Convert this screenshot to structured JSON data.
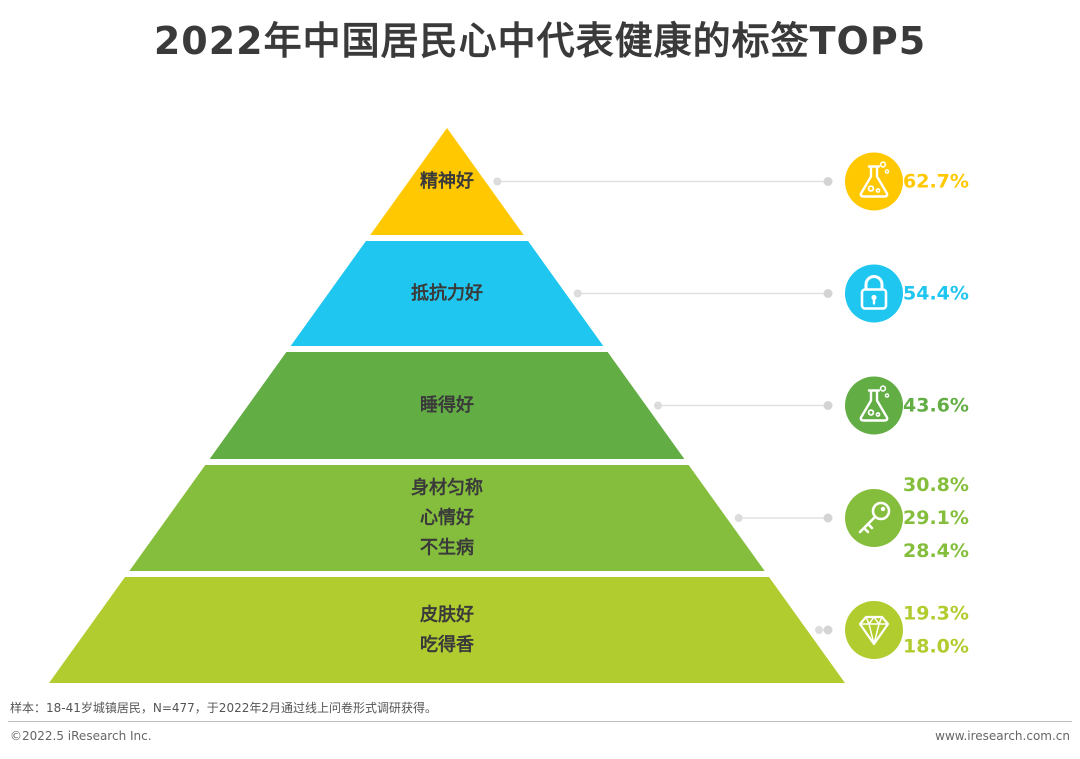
{
  "title": "2022年中国居民心中代表健康的标签TOP5",
  "note": "样本：18-41岁城镇居民，N=477，于2022年2月通过线上问卷形式调研获得。",
  "copyright": "©2022.5 iResearch Inc.",
  "website": "www.iresearch.com.cn",
  "chart_data": {
    "type": "pyramid",
    "title": "2022年中国居民心中代表健康的标签TOP5",
    "value_unit": "%",
    "tiers": [
      {
        "color": "#ffc800",
        "icon": "flask-icon",
        "labels": [
          "精神好"
        ],
        "values": [
          62.7
        ],
        "value_labels": [
          "62.7%"
        ]
      },
      {
        "color": "#1fc6f0",
        "icon": "lock-icon",
        "labels": [
          "抵抗力好"
        ],
        "values": [
          54.4
        ],
        "value_labels": [
          "54.4%"
        ]
      },
      {
        "color": "#63ad45",
        "icon": "flask-icon",
        "labels": [
          "睡得好"
        ],
        "values": [
          43.6
        ],
        "value_labels": [
          "43.6%"
        ]
      },
      {
        "color": "#85be3c",
        "icon": "key-icon",
        "labels": [
          "身材匀称",
          "心情好",
          "不生病"
        ],
        "values": [
          30.8,
          29.1,
          28.4
        ],
        "value_labels": [
          "30.8%",
          "29.1%",
          "28.4%"
        ]
      },
      {
        "color": "#b1cc2e",
        "icon": "diamond-icon",
        "labels": [
          "皮肤好",
          "吃得香"
        ],
        "values": [
          19.3,
          18.0
        ],
        "value_labels": [
          "19.3%",
          "18.0%"
        ]
      }
    ]
  }
}
